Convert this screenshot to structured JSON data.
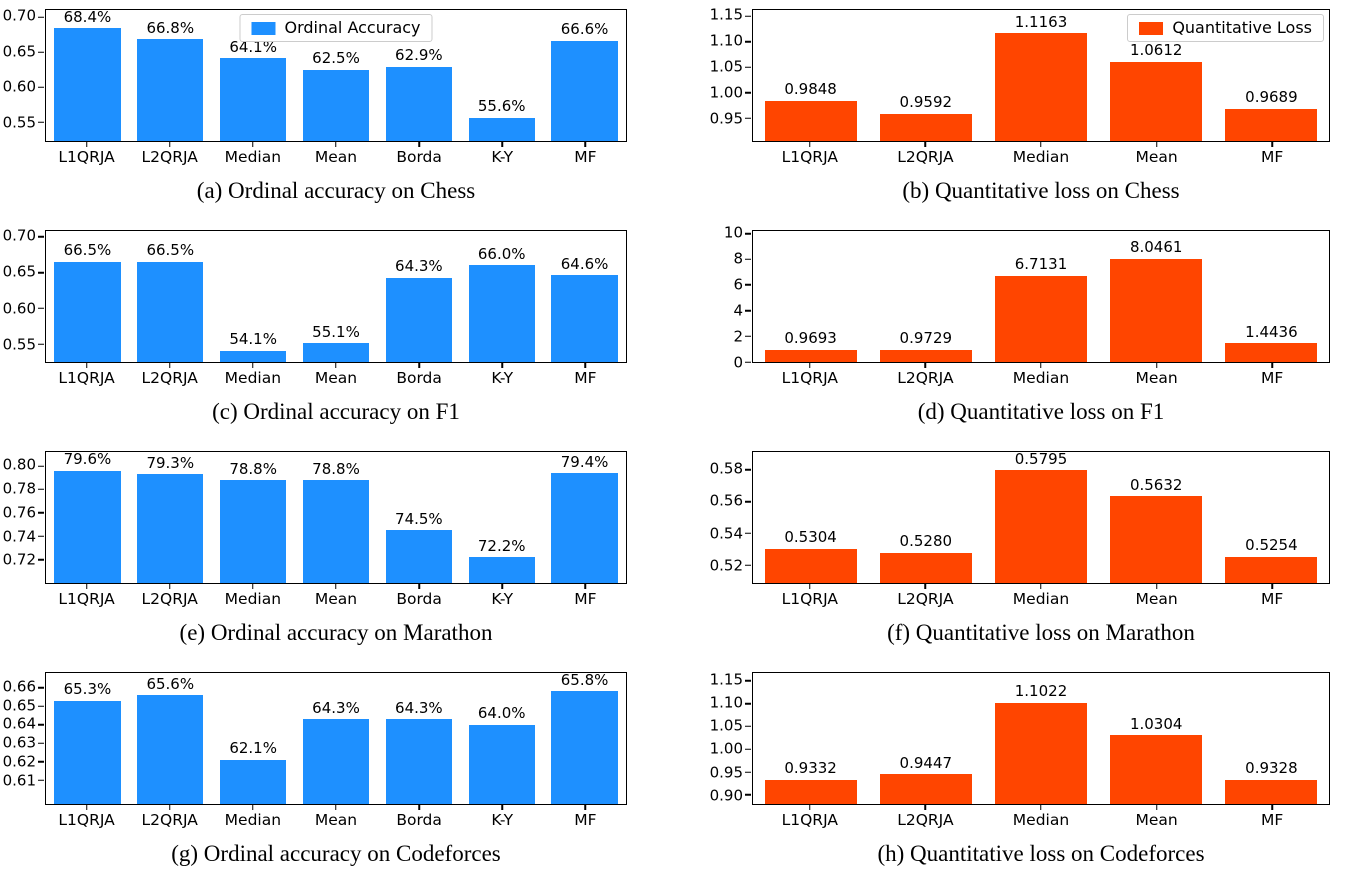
{
  "figure": {
    "background": "#ffffff",
    "accuracy_color": "#1E90FF",
    "loss_color": "#FF4500"
  },
  "chart_data": [
    {
      "id": "a",
      "type": "bar",
      "caption": "(a) Ordinal accuracy on Chess",
      "series_name": "Ordinal Accuracy",
      "color": "#1E90FF",
      "categories": [
        "L1QRJA",
        "L2QRJA",
        "Median",
        "Mean",
        "Borda",
        "K-Y",
        "MF"
      ],
      "values": [
        0.684,
        0.668,
        0.641,
        0.625,
        0.629,
        0.556,
        0.666
      ],
      "value_labels": [
        "68.4%",
        "66.8%",
        "64.1%",
        "62.5%",
        "62.9%",
        "55.6%",
        "66.6%"
      ],
      "yticks": [
        0.55,
        0.6,
        0.65,
        0.7
      ],
      "ytick_labels": [
        "0.55",
        "0.60",
        "0.65",
        "0.70"
      ],
      "ylim": [
        0.523,
        0.71
      ],
      "grid": false,
      "legend": {
        "label": "Ordinal Accuracy",
        "position": "upper-center"
      }
    },
    {
      "id": "b",
      "type": "bar",
      "caption": "(b) Quantitative loss on Chess",
      "series_name": "Quantitative Loss",
      "color": "#FF4500",
      "categories": [
        "L1QRJA",
        "L2QRJA",
        "Median",
        "Mean",
        "MF"
      ],
      "values": [
        0.9848,
        0.9592,
        1.1163,
        1.0612,
        0.9689
      ],
      "value_labels": [
        "0.9848",
        "0.9592",
        "1.1163",
        "1.0612",
        "0.9689"
      ],
      "yticks": [
        0.95,
        1.0,
        1.05,
        1.1,
        1.15
      ],
      "ytick_labels": [
        "0.95",
        "1.00",
        "1.05",
        "1.10",
        "1.15"
      ],
      "ylim": [
        0.906,
        1.162
      ],
      "grid": false,
      "legend": {
        "label": "Quantitative Loss",
        "position": "upper-right"
      }
    },
    {
      "id": "c",
      "type": "bar",
      "caption": "(c) Ordinal accuracy on F1",
      "series_name": "Ordinal Accuracy",
      "color": "#1E90FF",
      "categories": [
        "L1QRJA",
        "L2QRJA",
        "Median",
        "Mean",
        "Borda",
        "K-Y",
        "MF"
      ],
      "values": [
        0.665,
        0.665,
        0.541,
        0.551,
        0.643,
        0.66,
        0.646
      ],
      "value_labels": [
        "66.5%",
        "66.5%",
        "54.1%",
        "55.1%",
        "64.3%",
        "66.0%",
        "64.6%"
      ],
      "yticks": [
        0.55,
        0.6,
        0.65,
        0.7
      ],
      "ytick_labels": [
        "0.55",
        "0.60",
        "0.65",
        "0.70"
      ],
      "ylim": [
        0.525,
        0.708
      ],
      "grid": false,
      "legend": null
    },
    {
      "id": "d",
      "type": "bar",
      "caption": "(d) Quantitative loss on F1",
      "series_name": "Quantitative Loss",
      "color": "#FF4500",
      "categories": [
        "L1QRJA",
        "L2QRJA",
        "Median",
        "Mean",
        "MF"
      ],
      "values": [
        0.9693,
        0.9729,
        6.7131,
        8.0461,
        1.4436
      ],
      "value_labels": [
        "0.9693",
        "0.9729",
        "6.7131",
        "8.0461",
        "1.4436"
      ],
      "yticks": [
        0,
        2,
        4,
        6,
        8,
        10
      ],
      "ytick_labels": [
        "0",
        "2",
        "4",
        "6",
        "8",
        "10"
      ],
      "ylim": [
        0,
        10.2
      ],
      "grid": false,
      "legend": null
    },
    {
      "id": "e",
      "type": "bar",
      "caption": "(e) Ordinal accuracy on Marathon",
      "series_name": "Ordinal Accuracy",
      "color": "#1E90FF",
      "categories": [
        "L1QRJA",
        "L2QRJA",
        "Median",
        "Mean",
        "Borda",
        "K-Y",
        "MF"
      ],
      "values": [
        0.796,
        0.793,
        0.788,
        0.788,
        0.745,
        0.722,
        0.794
      ],
      "value_labels": [
        "79.6%",
        "79.3%",
        "78.8%",
        "78.8%",
        "74.5%",
        "72.2%",
        "79.4%"
      ],
      "yticks": [
        0.72,
        0.74,
        0.76,
        0.78,
        0.8
      ],
      "ytick_labels": [
        "0.72",
        "0.74",
        "0.76",
        "0.78",
        "0.80"
      ],
      "ylim": [
        0.7,
        0.812
      ],
      "grid": false,
      "legend": null
    },
    {
      "id": "f",
      "type": "bar",
      "caption": "(f) Quantitative loss on Marathon",
      "series_name": "Quantitative Loss",
      "color": "#FF4500",
      "categories": [
        "L1QRJA",
        "L2QRJA",
        "Median",
        "Mean",
        "MF"
      ],
      "values": [
        0.5304,
        0.528,
        0.5795,
        0.5632,
        0.5254
      ],
      "value_labels": [
        "0.5304",
        "0.5280",
        "0.5795",
        "0.5632",
        "0.5254"
      ],
      "yticks": [
        0.52,
        0.54,
        0.56,
        0.58
      ],
      "ytick_labels": [
        "0.52",
        "0.54",
        "0.56",
        "0.58"
      ],
      "ylim": [
        0.509,
        0.591
      ],
      "grid": false,
      "legend": null
    },
    {
      "id": "g",
      "type": "bar",
      "caption": "(g) Ordinal accuracy on Codeforces",
      "series_name": "Ordinal Accuracy",
      "color": "#1E90FF",
      "categories": [
        "L1QRJA",
        "L2QRJA",
        "Median",
        "Mean",
        "Borda",
        "K-Y",
        "MF"
      ],
      "values": [
        0.653,
        0.656,
        0.621,
        0.643,
        0.643,
        0.64,
        0.658
      ],
      "value_labels": [
        "65.3%",
        "65.6%",
        "62.1%",
        "64.3%",
        "64.3%",
        "64.0%",
        "65.8%"
      ],
      "yticks": [
        0.61,
        0.62,
        0.63,
        0.64,
        0.65,
        0.66
      ],
      "ytick_labels": [
        "0.61",
        "0.62",
        "0.63",
        "0.64",
        "0.65",
        "0.66"
      ],
      "ylim": [
        0.597,
        0.668
      ],
      "grid": false,
      "legend": null
    },
    {
      "id": "h",
      "type": "bar",
      "caption": "(h) Quantitative loss on Codeforces",
      "series_name": "Quantitative Loss",
      "color": "#FF4500",
      "categories": [
        "L1QRJA",
        "L2QRJA",
        "Median",
        "Mean",
        "MF"
      ],
      "values": [
        0.9332,
        0.9447,
        1.1022,
        1.0304,
        0.9328
      ],
      "value_labels": [
        "0.9332",
        "0.9447",
        "1.1022",
        "1.0304",
        "0.9328"
      ],
      "yticks": [
        0.9,
        0.95,
        1.0,
        1.05,
        1.1,
        1.15
      ],
      "ytick_labels": [
        "0.90",
        "0.95",
        "1.00",
        "1.05",
        "1.10",
        "1.15"
      ],
      "ylim": [
        0.88,
        1.167
      ],
      "grid": false,
      "legend": null
    }
  ]
}
